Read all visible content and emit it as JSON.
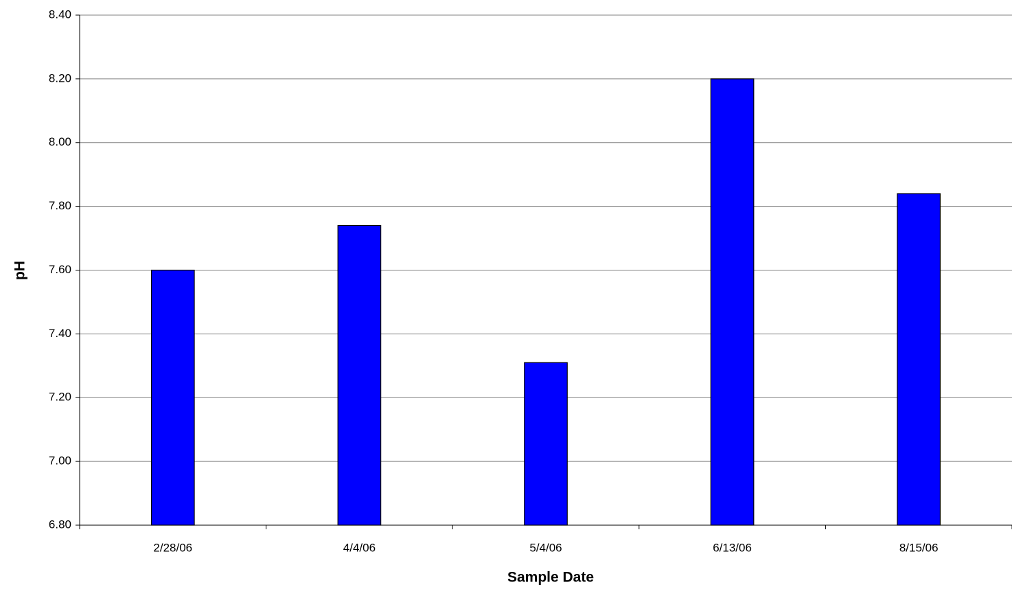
{
  "chart_data": {
    "type": "bar",
    "x_label": "Sample Date",
    "y_label": "pH",
    "categories": [
      "2/28/06",
      "4/4/06",
      "5/4/06",
      "6/13/06",
      "8/15/06"
    ],
    "values": [
      7.6,
      7.74,
      7.31,
      8.2,
      7.84
    ],
    "color": "#0000ff",
    "ylim": [
      6.8,
      8.4
    ],
    "yticks": [
      {
        "value": 6.8,
        "label": "6.80"
      },
      {
        "value": 7.0,
        "label": "7.00"
      },
      {
        "value": 7.2,
        "label": "7.20"
      },
      {
        "value": 7.4,
        "label": "7.40"
      },
      {
        "value": 7.6,
        "label": "7.60"
      },
      {
        "value": 7.8,
        "label": "7.80"
      },
      {
        "value": 8.0,
        "label": "8.00"
      },
      {
        "value": 8.2,
        "label": "8.20"
      },
      {
        "value": 8.4,
        "label": "8.40"
      }
    ],
    "grid": true
  }
}
